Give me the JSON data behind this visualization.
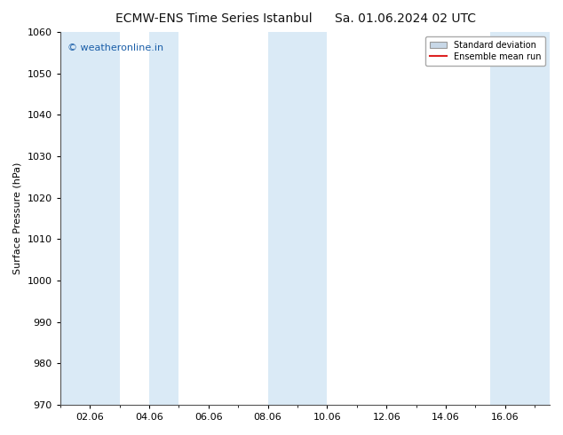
{
  "title_left": "ECMW-ENS Time Series Istanbul",
  "title_right": "Sa. 01.06.2024 02 UTC",
  "ylabel": "Surface Pressure (hPa)",
  "ylim": [
    970,
    1060
  ],
  "yticks": [
    970,
    980,
    990,
    1000,
    1010,
    1020,
    1030,
    1040,
    1050,
    1060
  ],
  "xtick_labels": [
    "02.06",
    "04.06",
    "06.06",
    "08.06",
    "10.06",
    "12.06",
    "14.06",
    "16.06"
  ],
  "xtick_positions": [
    1,
    3,
    5,
    7,
    9,
    11,
    13,
    15
  ],
  "x_min": 0,
  "x_max": 16.5,
  "shaded_bands": [
    {
      "x_start": 0,
      "x_end": 2.0
    },
    {
      "x_start": 3.0,
      "x_end": 4.0
    },
    {
      "x_start": 7.0,
      "x_end": 9.0
    },
    {
      "x_start": 14.5,
      "x_end": 16.5
    }
  ],
  "band_color": "#daeaf6",
  "plot_bg_color": "#ffffff",
  "background_color": "#ffffff",
  "watermark_text": "© weatheronline.in",
  "watermark_color": "#1a5ea8",
  "legend_std_color": "#c8d8e8",
  "legend_std_edge": "#999999",
  "legend_mean_color": "#dd2222",
  "title_fontsize": 10,
  "axis_label_fontsize": 8,
  "tick_fontsize": 8,
  "watermark_fontsize": 8
}
